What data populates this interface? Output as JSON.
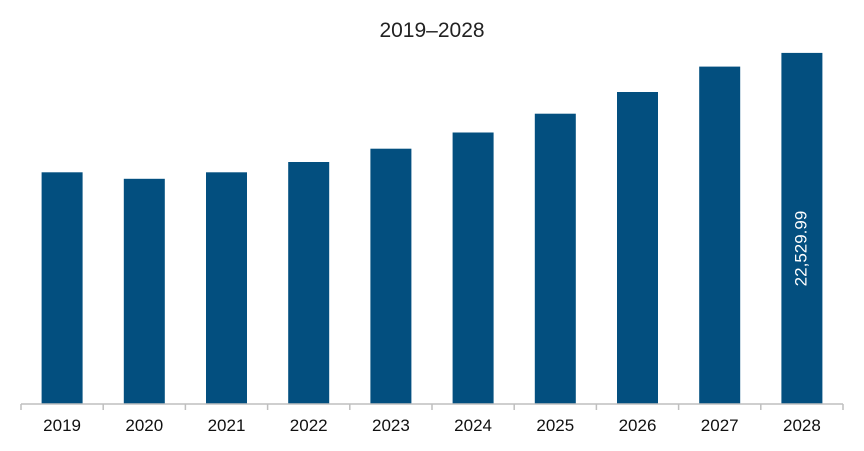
{
  "chart_data": {
    "type": "bar",
    "title": "2019–2028",
    "xlabel": "",
    "ylabel": "",
    "categories": [
      "2019",
      "2020",
      "2021",
      "2022",
      "2023",
      "2024",
      "2025",
      "2026",
      "2027",
      "2028"
    ],
    "values": [
      14870,
      14450,
      14870,
      15530,
      16380,
      17420,
      18630,
      20020,
      21650,
      22529.99
    ],
    "data_labels": {
      "2028": "22,529.99"
    },
    "ylim": [
      0,
      24000
    ],
    "grid": false,
    "legend": "none",
    "bar_color": "#034f7f",
    "axis_color": "#bfbfbf"
  }
}
